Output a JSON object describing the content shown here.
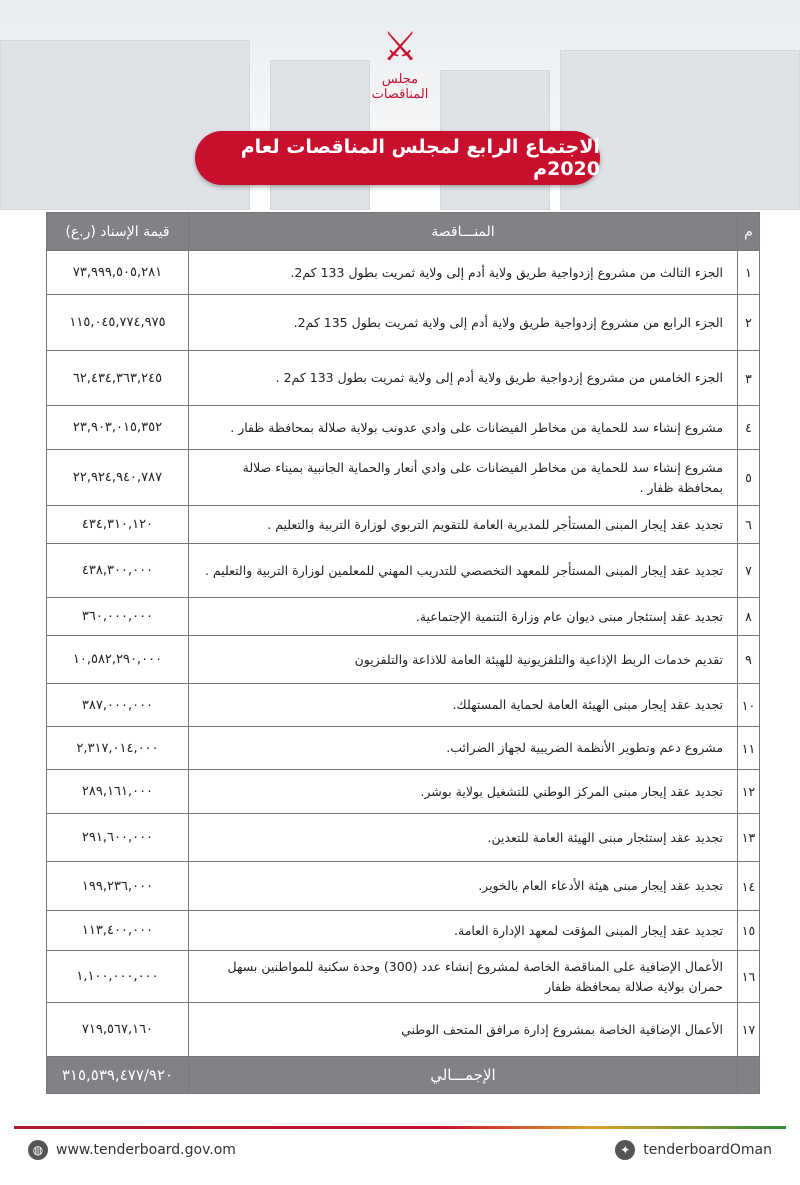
{
  "logo_text": "مجلس المناقصات",
  "title": "الاجتماع الرابع لمجلس المناقصات لعام 2020م",
  "table": {
    "headers": {
      "num": "م",
      "tender": "المنـــاقصة",
      "value": "قيمة الإسناد (ر.ع)"
    },
    "rows": [
      {
        "num": "١",
        "desc": "الجزء الثالث من  مشروع  إزدواجية طريق ولاية أدم إلى ولاية ثمريت بطول 133  كم2.",
        "value": "٧٣,٩٩٩,٥٠٥,٢٨١"
      },
      {
        "num": "٢",
        "desc": "الجزء الرابع من مشروع إزدواجية طريق ولاية أدم إلى ولاية ثمريت  بطول 135 كم2.",
        "value": "١١٥,٠٤٥,٧٧٤,٩٧٥"
      },
      {
        "num": "٣",
        "desc": "الجزء الخامس من مشروع  إزدواجية طريق ولاية أدم إلى ولاية ثمريت بطول 133 كم2 .",
        "value": "٦٢,٤٣٤,٣٦٣,٢٤٥"
      },
      {
        "num": "٤",
        "desc": "مشروع إنشاء سد للحماية من مخاطر الفيضانات على وادي عدونب بولاية صلالة بمحافظة ظفار .",
        "value": "٢٣,٩٠٣,٠١٥,٣٥٢"
      },
      {
        "num": "٥",
        "desc": "مشروع إنشاء سد للحماية من مخاطر الفيضانات على وادي  أنعار والحماية الجانبية بميناء صلالة بمحافظة ظفار .",
        "value": "٢٢,٩٢٤,٩٤٠,٧٨٧"
      },
      {
        "num": "٦",
        "desc": "تجديد عقد إيجار المبنى المستأجر للمديرية العامة للتقويم التربوي لوزارة التربية والتعليم .",
        "value": "٤٣٤,٣١٠,١٢٠"
      },
      {
        "num": "٧",
        "desc": "تجديد عقد إيجار المبنى المستأجر للمعهد التخصصي للتدريب المهني للمعلمين لوزارة التربية والتعليم .",
        "value": "٤٣٨,٣٠٠,٠٠٠"
      },
      {
        "num": "٨",
        "desc": "تجديد عقد إستئجار مبنى  ديوان عام وزارة التنمية الإجتماعية.",
        "value": "٣٦٠,٠٠٠,٠٠٠"
      },
      {
        "num": "٩",
        "desc": "تقديم خدمات الربط الإذاعية والتلفزيونية للهيئة العامة للاذاعة والتلفزيون",
        "value": "١٠,٥٨٢,٢٩٠,٠٠٠"
      },
      {
        "num": "١٠",
        "desc": "تجديد عقد إيجار مبنى الهيئة العامة لحماية المستهلك.",
        "value": "٣٨٧,٠٠٠,٠٠٠"
      },
      {
        "num": "١١",
        "desc": "مشروع دعم وتطوير الأنظمة الضريبية لجهاز الضرائب.",
        "value": "٢,٣١٧,٠١٤,٠٠٠"
      },
      {
        "num": "١٢",
        "desc": "تجديد عقد إيجار مبنى المركز الوطني للتشغيل بولاية  بوشر.",
        "value": "٢٨٩,١٦١,٠٠٠"
      },
      {
        "num": "١٣",
        "desc": "تجديد عقد إستئجار مبنى الهيئة العامة للتعدين.",
        "value": "٢٩١,٦٠٠,٠٠٠"
      },
      {
        "num": "١٤",
        "desc": "تجديد عقد إيجار مبنى هيئة الأدعاء العام بالخوير.",
        "value": "١٩٩,٢٣٦,٠٠٠"
      },
      {
        "num": "١٥",
        "desc": "تجديد عقد إيجار المبنى المؤقت لمعهد الإدارة العامة.",
        "value": "١١٣,٤٠٠,٠٠٠"
      },
      {
        "num": "١٦",
        "desc": "الأعمال الإضافية على المناقصة الخاصة لمشروع إنشاء عدد (300) وحدة سكنية للمواطنين بسهل حمران بولاية صلالة بمحافظة ظفار",
        "value": "١,١٠٠,٠٠٠,٠٠٠"
      },
      {
        "num": "١٧",
        "desc": "الأعمال الإضافية الخاصة بمشروع إدارة مرافق المتحف الوطني",
        "value": "٧١٩,٥٦٧,١٦٠"
      }
    ],
    "total": {
      "label": "الإجمـــالي",
      "value": "٣١٥,٥٣٩,٤٧٧/٩٢٠"
    }
  },
  "footer": {
    "website": "www.tenderboard.gov.om",
    "twitter": "tenderboardOman"
  },
  "colors": {
    "accent": "#c8102e",
    "header_gray": "#808285"
  }
}
